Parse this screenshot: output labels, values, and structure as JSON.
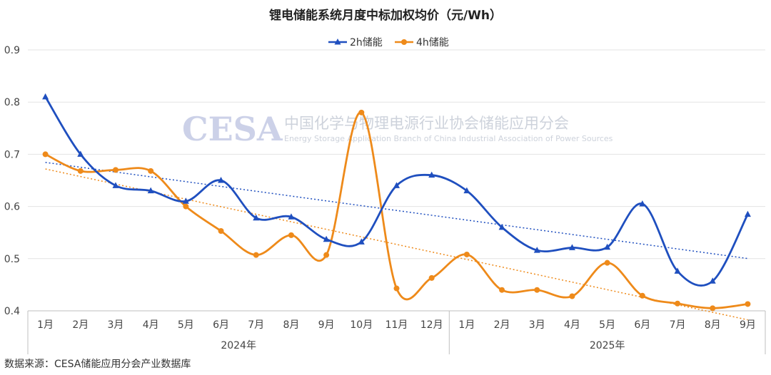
{
  "chart_data": {
    "type": "line",
    "title": "锂电储能系统月度中标加权均价（元/Wh）",
    "categories": [
      "1月",
      "2月",
      "3月",
      "4月",
      "5月",
      "6月",
      "7月",
      "8月",
      "9月",
      "10月",
      "11月",
      "12月",
      "1月",
      "2月",
      "3月",
      "4月",
      "5月",
      "6月",
      "7月",
      "8月",
      "9月"
    ],
    "year_groups": [
      {
        "label": "2024年",
        "start": 0,
        "end": 11
      },
      {
        "label": "2025年",
        "start": 12,
        "end": 20
      }
    ],
    "ylim": [
      0.4,
      0.9
    ],
    "yticks": [
      "0.4",
      "0.5",
      "0.6",
      "0.7",
      "0.8",
      "0.9"
    ],
    "series": [
      {
        "name": "2h储能",
        "color": "#1f4fbf",
        "marker": "triangle",
        "values": [
          0.81,
          0.7,
          0.64,
          0.63,
          0.61,
          0.65,
          0.578,
          0.58,
          0.537,
          0.532,
          0.64,
          0.66,
          0.63,
          0.56,
          0.516,
          0.521,
          0.522,
          0.605,
          0.476,
          0.457,
          0.585
        ]
      },
      {
        "name": "4h储能",
        "color": "#ee8a1a",
        "marker": "circle",
        "values": [
          0.7,
          0.668,
          0.67,
          0.668,
          0.6,
          0.553,
          0.507,
          0.545,
          0.507,
          0.78,
          0.443,
          0.463,
          0.508,
          0.44,
          0.44,
          0.428,
          0.492,
          0.429,
          0.414,
          0.405,
          0.413
        ]
      }
    ],
    "trendlines": true,
    "grid": true,
    "legend": "top-center"
  },
  "watermark": {
    "logo": "CESA",
    "cn": "中国化学与物理电源行业协会储能应用分会",
    "en": "Energy Storage Application Branch of China Industrial Association of Power Sources"
  },
  "source": "数据来源：CESA储能应用分会产业数据库"
}
